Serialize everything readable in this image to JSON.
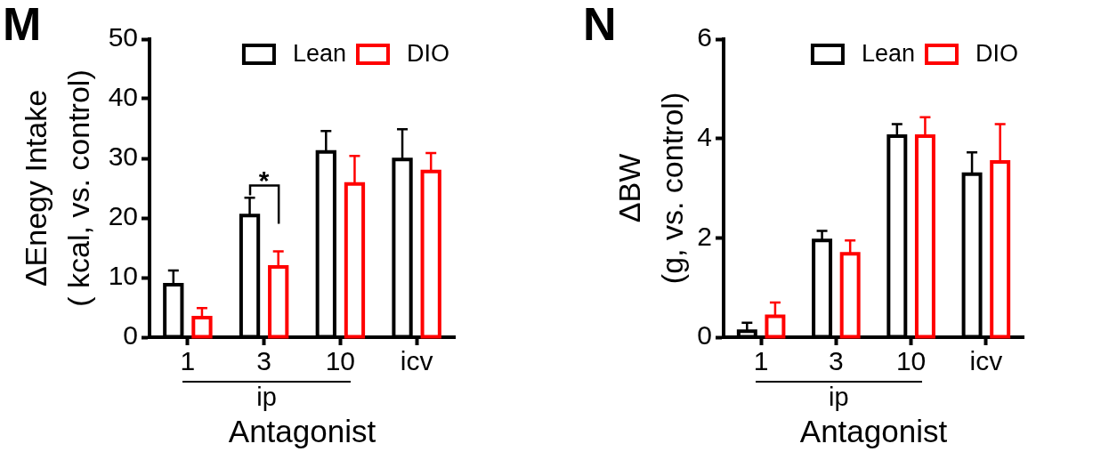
{
  "chart_data": [
    {
      "type": "bar",
      "title": "M",
      "xlabel": "Antagonist",
      "ylabel": "ΔEnegy Intake\n( kcal, vs. control)",
      "categories": [
        "1",
        "3",
        "10",
        "icv"
      ],
      "series": [
        {
          "name": "Lean",
          "color": "#000000",
          "values": [
            8.8,
            20.4,
            31.1,
            29.8
          ],
          "errors": [
            [
              8.8,
              11.2
            ],
            [
              20.4,
              23.4
            ],
            [
              31.1,
              34.6
            ],
            [
              29.8,
              34.9
            ]
          ]
        },
        {
          "name": "DIO",
          "color": "#ff0000",
          "values": [
            3.3,
            11.8,
            25.7,
            27.8
          ],
          "errors": [
            [
              3.3,
              4.9
            ],
            [
              11.8,
              14.4
            ],
            [
              25.7,
              30.4
            ],
            [
              27.8,
              30.9
            ]
          ]
        }
      ],
      "ylim": [
        0,
        50
      ],
      "yticks": [
        0,
        10,
        20,
        30,
        40,
        50
      ],
      "legend": "top right",
      "annotations": [
        "*",
        "ip"
      ]
    },
    {
      "type": "bar",
      "title": "N",
      "xlabel": "Antagonist",
      "ylabel": "ΔBW\n(g, vs. control)",
      "categories": [
        "1",
        "3",
        "10",
        "icv"
      ],
      "series": [
        {
          "name": "Lean",
          "color": "#000000",
          "values": [
            0.12,
            1.95,
            4.05,
            3.28
          ],
          "errors": [
            [
              0.12,
              0.29
            ],
            [
              1.95,
              2.14
            ],
            [
              4.05,
              4.29
            ],
            [
              3.28,
              3.72
            ]
          ]
        },
        {
          "name": "DIO",
          "color": "#ff0000",
          "values": [
            0.42,
            1.68,
            4.05,
            3.53
          ],
          "errors": [
            [
              0.42,
              0.7
            ],
            [
              1.68,
              1.95
            ],
            [
              4.05,
              4.43
            ],
            [
              3.53,
              4.29
            ]
          ]
        }
      ],
      "ylim": [
        0,
        6
      ],
      "yticks": [
        0,
        2,
        4,
        6
      ],
      "legend": "top right",
      "annotations": [
        "ip"
      ]
    }
  ]
}
